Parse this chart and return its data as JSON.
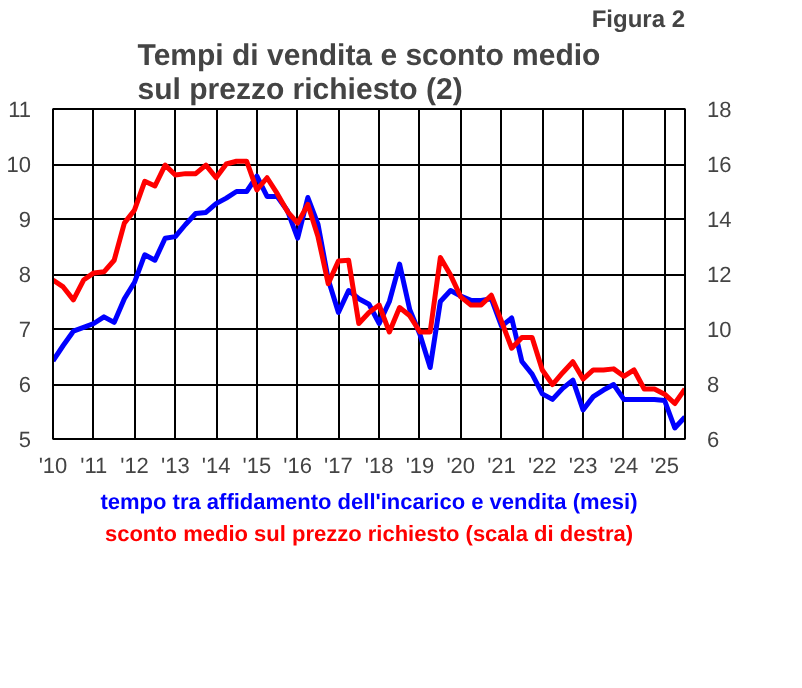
{
  "chart_data": {
    "type": "line",
    "title": "Tempi di vendita e sconto medio\nsul prezzo richiesto (2)",
    "annotations": [
      "Figura 2"
    ],
    "x": [
      2010.0,
      2010.25,
      2010.5,
      2010.75,
      2011.0,
      2011.25,
      2011.5,
      2011.75,
      2012.0,
      2012.25,
      2012.5,
      2012.75,
      2013.0,
      2013.25,
      2013.5,
      2013.75,
      2014.0,
      2014.25,
      2014.5,
      2014.75,
      2015.0,
      2015.25,
      2015.5,
      2015.75,
      2016.0,
      2016.25,
      2016.5,
      2016.75,
      2017.0,
      2017.25,
      2017.5,
      2017.75,
      2018.0,
      2018.25,
      2018.5,
      2018.75,
      2019.0,
      2019.25,
      2019.5,
      2019.75,
      2020.0,
      2020.25,
      2020.5,
      2020.75,
      2021.0,
      2021.25,
      2021.5,
      2021.75,
      2022.0,
      2022.25,
      2022.5,
      2022.75,
      2023.0,
      2023.25,
      2023.5,
      2023.75,
      2024.0,
      2024.25,
      2024.5,
      2024.75,
      2025.0,
      2025.25,
      2025.5
    ],
    "series": [
      {
        "name": "tempo tra affidamento dell'incarico e vendita (mesi)",
        "color": "#0000ff",
        "values": [
          6.42,
          6.7,
          6.96,
          7.03,
          7.1,
          7.22,
          7.12,
          7.55,
          7.85,
          8.35,
          8.25,
          8.65,
          8.68,
          8.9,
          9.1,
          9.12,
          9.28,
          9.38,
          9.5,
          9.5,
          9.78,
          9.41,
          9.41,
          9.15,
          8.65,
          9.39,
          8.9,
          7.9,
          7.3,
          7.7,
          7.55,
          7.45,
          7.1,
          7.5,
          8.18,
          7.35,
          6.9,
          6.3,
          7.5,
          7.7,
          7.6,
          7.52,
          7.52,
          7.55,
          7.05,
          7.2,
          6.41,
          6.18,
          5.82,
          5.72,
          5.92,
          6.07,
          5.53,
          5.77,
          5.89,
          5.99,
          5.72,
          5.72,
          5.72,
          5.72,
          5.7,
          5.2,
          5.4
        ]
      },
      {
        "name": "sconto medio sul prezzo richiesto (scala di destra)",
        "color": "#ff0000",
        "axis": "y2",
        "values": [
          11.78,
          11.53,
          11.06,
          11.78,
          12.04,
          12.08,
          12.5,
          13.85,
          14.33,
          15.37,
          15.2,
          15.96,
          15.6,
          15.65,
          15.65,
          15.96,
          15.5,
          16.0,
          16.1,
          16.1,
          15.06,
          15.5,
          14.92,
          14.27,
          13.85,
          14.53,
          13.35,
          11.65,
          12.47,
          12.5,
          10.2,
          10.6,
          10.87,
          9.89,
          10.78,
          10.48,
          9.89,
          9.89,
          12.6,
          11.96,
          11.17,
          10.87,
          10.87,
          11.23,
          10.28,
          9.3,
          9.69,
          9.69,
          8.51,
          7.98,
          8.41,
          8.81,
          8.18,
          8.51,
          8.51,
          8.55,
          8.28,
          8.51,
          7.82,
          7.82,
          7.63,
          7.29,
          7.82
        ]
      }
    ],
    "xlim": [
      2010.0,
      2025.5
    ],
    "xticks": [
      {
        "value": 2010,
        "label": "'10"
      },
      {
        "value": 2011,
        "label": "'11"
      },
      {
        "value": 2012,
        "label": "'12"
      },
      {
        "value": 2013,
        "label": "'13"
      },
      {
        "value": 2014,
        "label": "'14"
      },
      {
        "value": 2015,
        "label": "'15"
      },
      {
        "value": 2016,
        "label": "'16"
      },
      {
        "value": 2017,
        "label": "'17"
      },
      {
        "value": 2018,
        "label": "'18"
      },
      {
        "value": 2019,
        "label": "'19"
      },
      {
        "value": 2020,
        "label": "'20"
      },
      {
        "value": 2021,
        "label": "'21"
      },
      {
        "value": 2022,
        "label": "'22"
      },
      {
        "value": 2023,
        "label": "'23"
      },
      {
        "value": 2024,
        "label": "'24"
      },
      {
        "value": 2025,
        "label": "'25"
      }
    ],
    "ylim": [
      5,
      11
    ],
    "yticks": [
      5,
      6,
      7,
      8,
      9,
      10,
      11
    ],
    "y2lim": [
      6,
      18
    ],
    "y2ticks": [
      6,
      8,
      10,
      12,
      14,
      16,
      18
    ],
    "grid": true,
    "legend": "bottom",
    "line_style": "solid"
  }
}
